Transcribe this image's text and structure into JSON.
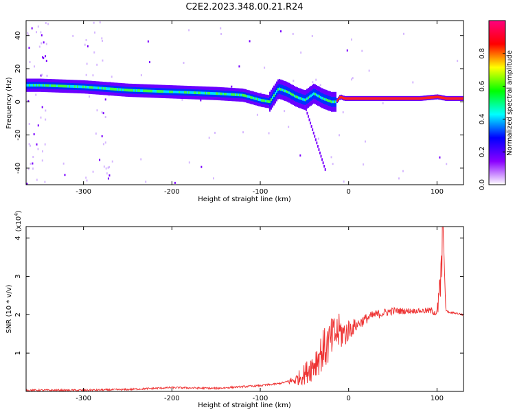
{
  "title": "C2E2.2023.348.00.21.R24",
  "chart_data": [
    {
      "type": "heatmap",
      "xlabel": "Height of straight line (km)",
      "ylabel": "Frequency (Hz)",
      "xlim": [
        -365,
        130
      ],
      "ylim": [
        -50,
        49
      ],
      "x_ticks": [
        -300,
        -200,
        -100,
        0,
        100
      ],
      "y_ticks": [
        -40,
        -20,
        0,
        20,
        40
      ],
      "colorbar": {
        "label": "Normalized spectral amplitude",
        "range": [
          0,
          1
        ],
        "ticks": [
          "0.0",
          "0.2",
          "0.4",
          "0.6",
          "0.8"
        ],
        "colors": [
          "#ffffff",
          "#8a00ff",
          "#0000ff",
          "#00ffff",
          "#00ff00",
          "#ffff00",
          "#ff0000",
          "#ff007f"
        ]
      },
      "dominant_frequency_trace": {
        "x": [
          -350,
          -300,
          -250,
          -200,
          -150,
          -120,
          -100,
          -90,
          -80,
          -70,
          -60,
          -50,
          -40,
          -30,
          -20,
          -15,
          -10,
          -5,
          0,
          20,
          50,
          80,
          100,
          110,
          130
        ],
        "y": [
          10,
          9,
          7,
          6,
          5,
          4,
          1,
          0,
          8,
          6,
          3,
          1,
          5,
          2,
          0,
          0,
          3,
          2,
          2,
          2,
          2,
          2,
          3,
          2,
          2
        ]
      }
    },
    {
      "type": "line",
      "xlabel": "Height of straight line (km)",
      "ylabel": "SNR (10 * v/v)",
      "y_multiplier": "(x10",
      "y_multiplier_exp": "4",
      "y_multiplier_close": ")",
      "xlim": [
        -365,
        130
      ],
      "ylim": [
        0,
        4.3
      ],
      "x_ticks": [
        -300,
        -200,
        -100,
        0,
        100
      ],
      "y_ticks": [
        1,
        2,
        3,
        4
      ],
      "series": [
        {
          "color": "#ee3333",
          "x": [
            -365,
            -300,
            -250,
            -200,
            -150,
            -100,
            -80,
            -60,
            -50,
            -40,
            -30,
            -20,
            -15,
            -10,
            -5,
            0,
            10,
            20,
            30,
            40,
            50,
            60,
            70,
            80,
            90,
            95,
            100,
            103,
            105,
            107,
            110,
            115,
            120,
            130
          ],
          "y": [
            0.03,
            0.03,
            0.05,
            0.1,
            0.08,
            0.15,
            0.2,
            0.3,
            0.45,
            0.7,
            1.05,
            1.3,
            1.5,
            1.55,
            1.5,
            1.6,
            1.75,
            1.9,
            2.0,
            2.05,
            2.1,
            2.1,
            2.1,
            2.1,
            2.1,
            2.1,
            2.05,
            2.5,
            3.2,
            4.2,
            2.1,
            2.05,
            2.05,
            2.0
          ],
          "noise_envelope": {
            "x": [
              -70,
              -60,
              -50,
              -40,
              -30,
              -20,
              -10,
              0,
              10,
              80,
              90,
              100,
              105,
              107
            ],
            "amplitude": [
              0.1,
              0.25,
              0.45,
              0.7,
              0.9,
              1.0,
              0.8,
              0.5,
              0.25,
              0.1,
              0.15,
              0.2,
              1.4,
              1.6
            ]
          }
        }
      ]
    }
  ]
}
